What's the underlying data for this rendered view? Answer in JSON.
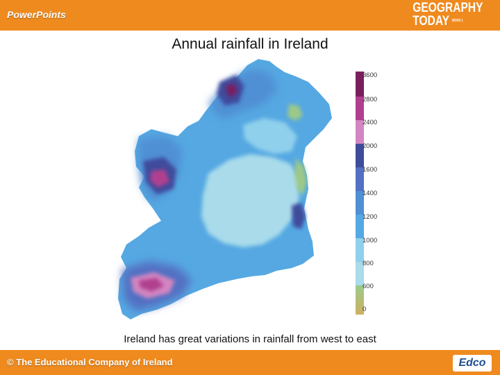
{
  "header": {
    "app_label": "PowerPoints",
    "brand_line1": "GEOGRAPHY",
    "brand_line2": "TODAY",
    "brand_suffix": "BOOK 1"
  },
  "slide": {
    "title": "Annual rainfall in Ireland",
    "caption": "Ireland has great variations in rainfall from west to east"
  },
  "legend": {
    "labels": [
      "3600",
      "2800",
      "2400",
      "2000",
      "1600",
      "1400",
      "1200",
      "1000",
      "800",
      "600",
      "0"
    ],
    "colors": [
      "#7a1f5e",
      "#b03f8f",
      "#d386c1",
      "#3f4c9c",
      "#5370c2",
      "#4f8fd4",
      "#55a8e2",
      "#8fd0ec",
      "#a9dbeb",
      "#9cc988",
      "#cfb062"
    ]
  },
  "footer": {
    "copyright": "© The Educational Company of Ireland",
    "publisher_logo": "Edco"
  }
}
